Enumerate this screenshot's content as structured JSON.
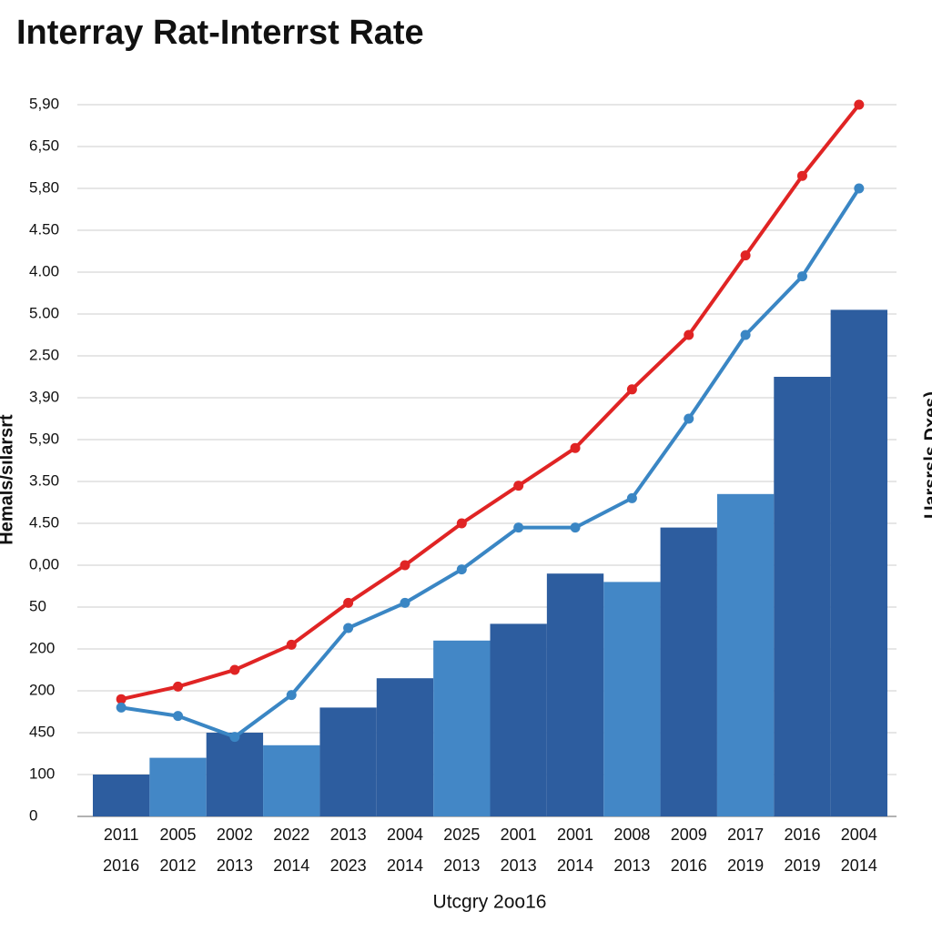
{
  "chart_data": {
    "type": "bar",
    "title": "Interray Rat-Interrst Rate",
    "x_label": "Utcgry 2oo16",
    "y_label": "Hemals/sılarsrt",
    "y2_label": "Uarsrsls Dxes)",
    "categories": [
      [
        "2011",
        "2016"
      ],
      [
        "2005",
        "2012"
      ],
      [
        "2002",
        "2013"
      ],
      [
        "2022",
        "2014"
      ],
      [
        "2013",
        "2023"
      ],
      [
        "2004",
        "2014"
      ],
      [
        "2025",
        "2013"
      ],
      [
        "2001",
        "2013"
      ],
      [
        "2001",
        "2014"
      ],
      [
        "2008",
        "2013"
      ],
      [
        "2009",
        "2016"
      ],
      [
        "2017",
        "2019"
      ],
      [
        "2016",
        "2019"
      ],
      [
        "2004",
        "2014"
      ]
    ],
    "ylim": [
      0,
      17
    ],
    "yticks": [
      {
        "value": 0,
        "label": "0"
      },
      {
        "value": 1,
        "label": "100"
      },
      {
        "value": 2,
        "label": "450"
      },
      {
        "value": 3,
        "label": "200"
      },
      {
        "value": 4,
        "label": "200"
      },
      {
        "value": 5,
        "label": "50"
      },
      {
        "value": 6,
        "label": "0,00"
      },
      {
        "value": 7,
        "label": "4.50"
      },
      {
        "value": 8,
        "label": "3.50"
      },
      {
        "value": 9,
        "label": "5,90"
      },
      {
        "value": 10,
        "label": "3,90"
      },
      {
        "value": 11,
        "label": "2.50"
      },
      {
        "value": 12,
        "label": "5.00"
      },
      {
        "value": 13,
        "label": "4.00"
      },
      {
        "value": 14,
        "label": "4.50"
      },
      {
        "value": 15,
        "label": "5,80"
      },
      {
        "value": 16,
        "label": "6,50"
      },
      {
        "value": 17,
        "label": "5,90"
      }
    ],
    "grid": true,
    "series": [
      {
        "type": "bar",
        "colors": [
          "#2d5d9f",
          "#4387c6",
          "#2d5d9f",
          "#4387c6",
          "#2d5d9f",
          "#2d5d9f",
          "#4387c6",
          "#2d5d9f",
          "#2d5d9f",
          "#4387c6",
          "#2d5d9f",
          "#4387c6",
          "#2d5d9f",
          "#2d5d9f"
        ],
        "values": [
          1.0,
          1.4,
          2.0,
          1.7,
          2.6,
          3.3,
          4.2,
          4.6,
          5.8,
          5.6,
          6.9,
          7.7,
          10.5,
          12.1
        ]
      },
      {
        "type": "line",
        "color": "#e02424",
        "values": [
          2.8,
          3.1,
          3.5,
          4.1,
          5.1,
          6.0,
          7.0,
          7.9,
          8.8,
          10.2,
          11.5,
          13.4,
          15.3,
          17.0
        ]
      },
      {
        "type": "line",
        "color": "#3a86c4",
        "values": [
          2.6,
          2.4,
          1.9,
          2.9,
          4.5,
          5.1,
          5.9,
          6.9,
          6.9,
          7.6,
          9.5,
          11.5,
          12.9,
          15.0
        ]
      }
    ]
  }
}
